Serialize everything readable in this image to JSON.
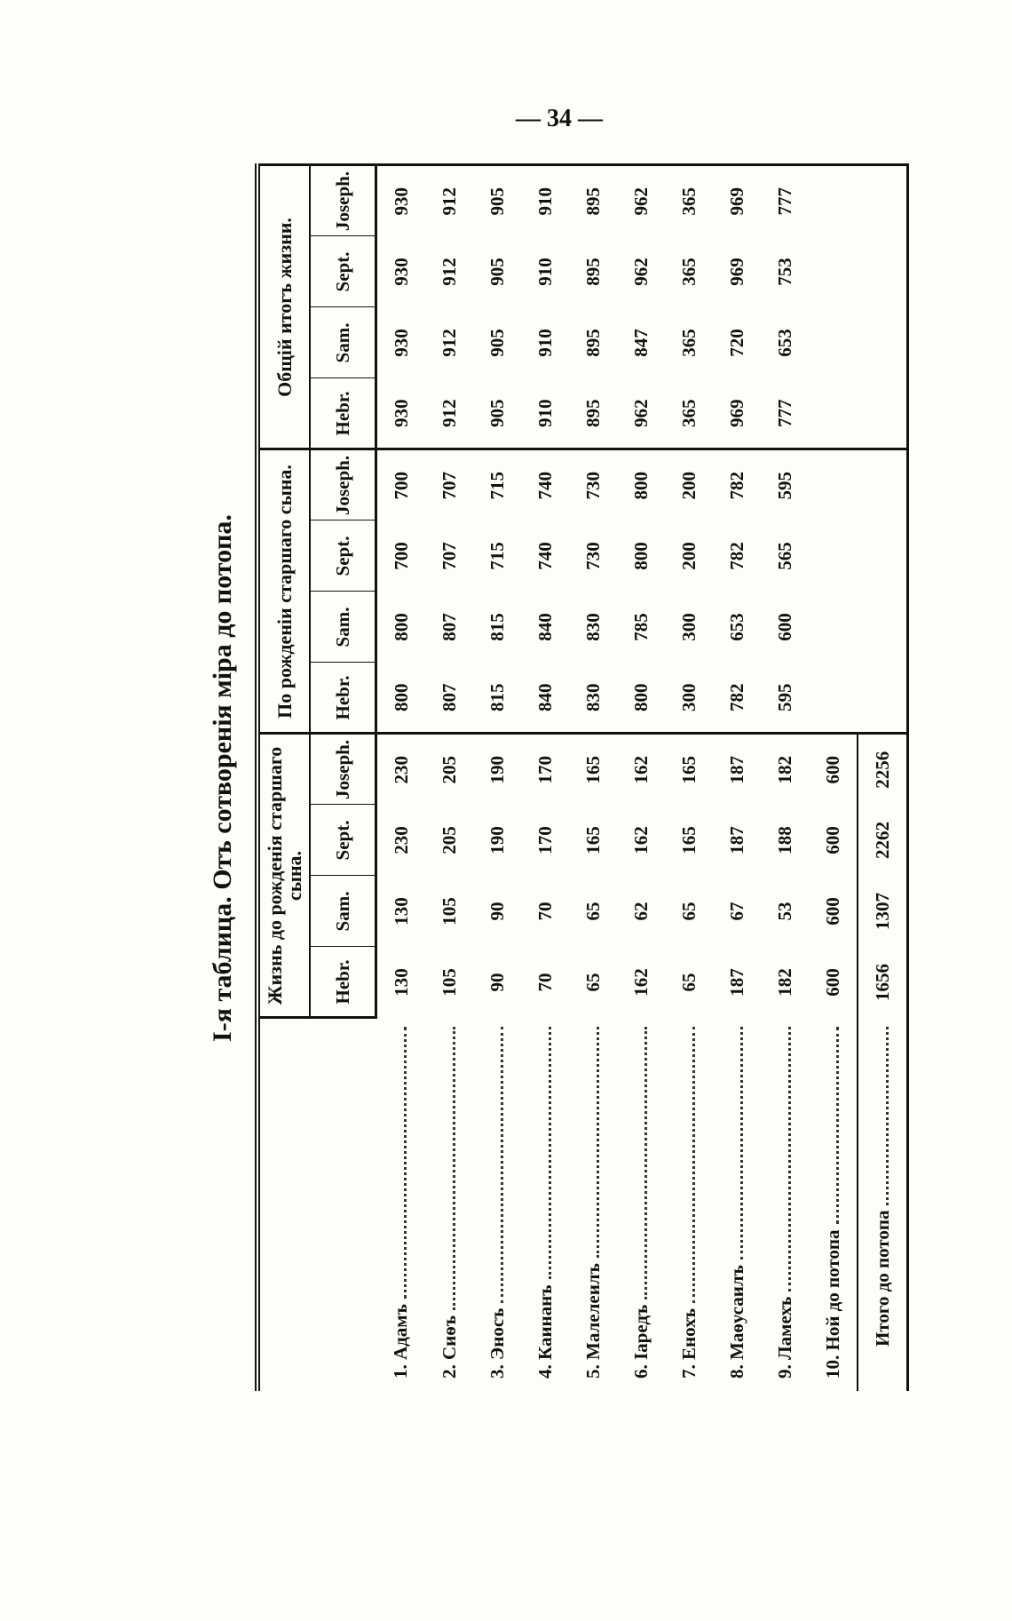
{
  "page_number": "— 34 —",
  "title": "I-я таблица. Отъ сотворенія міра до потопа.",
  "table": {
    "groups": [
      "Жизнь до рожденія старшаго сына.",
      "По рожденіи старшаго сына.",
      "Общій итогъ жизни."
    ],
    "columns": [
      "Hebr.",
      "Sam.",
      "Sept.",
      "Joseph."
    ],
    "rows": [
      {
        "label": "1. Адамъ",
        "life": [
          130,
          130,
          230,
          230
        ],
        "after": [
          800,
          800,
          700,
          700
        ],
        "total": [
          930,
          930,
          930,
          930
        ]
      },
      {
        "label": "2. Сиѳъ",
        "life": [
          105,
          105,
          205,
          205
        ],
        "after": [
          807,
          807,
          707,
          707
        ],
        "total": [
          912,
          912,
          912,
          912
        ]
      },
      {
        "label": "3. Эносъ",
        "life": [
          90,
          90,
          190,
          190
        ],
        "after": [
          815,
          815,
          715,
          715
        ],
        "total": [
          905,
          905,
          905,
          905
        ]
      },
      {
        "label": "4. Каинанъ",
        "life": [
          70,
          70,
          170,
          170
        ],
        "after": [
          840,
          840,
          740,
          740
        ],
        "total": [
          910,
          910,
          910,
          910
        ]
      },
      {
        "label": "5. Малелеилъ",
        "life": [
          65,
          65,
          165,
          165
        ],
        "after": [
          830,
          830,
          730,
          730
        ],
        "total": [
          895,
          895,
          895,
          895
        ]
      },
      {
        "label": "6. Іаредъ",
        "life": [
          162,
          62,
          162,
          162
        ],
        "after": [
          800,
          785,
          800,
          800
        ],
        "total": [
          962,
          847,
          962,
          962
        ]
      },
      {
        "label": "7. Енохъ",
        "life": [
          65,
          65,
          165,
          165
        ],
        "after": [
          300,
          300,
          200,
          200
        ],
        "total": [
          365,
          365,
          365,
          365
        ]
      },
      {
        "label": "8. Маѳусаилъ",
        "life": [
          187,
          67,
          187,
          187
        ],
        "after": [
          782,
          653,
          782,
          782
        ],
        "total": [
          969,
          720,
          969,
          969
        ]
      },
      {
        "label": "9. Ламехъ",
        "life": [
          182,
          53,
          188,
          182
        ],
        "after": [
          595,
          600,
          565,
          595
        ],
        "total": [
          777,
          653,
          753,
          777
        ]
      },
      {
        "label": "10. Ной до потопа",
        "life": [
          600,
          600,
          600,
          600
        ]
      },
      {
        "label": "Итого до потопа",
        "life": [
          1656,
          1307,
          2262,
          2256
        ]
      }
    ]
  }
}
